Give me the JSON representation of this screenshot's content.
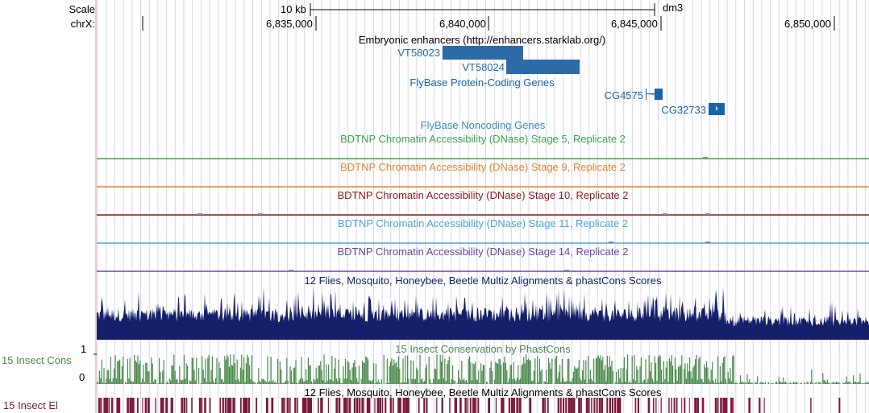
{
  "ruler": {
    "scale_label": "Scale",
    "scale_bar_label": "10 kb",
    "assembly": "dm3",
    "chrom_label": "chrX:",
    "positions": [
      "6,835,000",
      "6,840,000",
      "6,845,000",
      "6,850,000"
    ]
  },
  "tracks": {
    "enhancers": {
      "title": "Embryonic enhancers (http://enhancers.starklab.org/)",
      "features": [
        "VT58023",
        "VT58024"
      ],
      "color": "#2c6aa8"
    },
    "genes": {
      "title": "FlyBase Protein-Coding Genes",
      "features": [
        "CG4575",
        "CG32733"
      ],
      "color": "#1a63a8"
    },
    "noncoding": {
      "title": "FlyBase Noncoding Genes",
      "color": "#3a8cc4"
    },
    "dnase": [
      {
        "title": "BDTNP Chromatin Accessibility (DNase) Stage 5, Replicate 2",
        "color": "#3aa64a"
      },
      {
        "title": "BDTNP Chromatin Accessibility (DNase) Stage 9, Replicate 2",
        "color": "#e8832a"
      },
      {
        "title": "BDTNP Chromatin Accessibility (DNase) Stage 10, Replicate 2",
        "color": "#8c1a1a"
      },
      {
        "title": "BDTNP Chromatin Accessibility (DNase) Stage 11, Replicate 2",
        "color": "#4aa6d8"
      },
      {
        "title": "BDTNP Chromatin Accessibility (DNase) Stage 14, Replicate 2",
        "color": "#6a46a6"
      }
    ],
    "multiz": {
      "title": "12 Flies, Mosquito, Honeybee, Beetle Multiz Alignments & phastCons Scores",
      "color": "#14206a"
    },
    "phastcons": {
      "side_label": "15 Insect Cons",
      "title": "15 Insect Conservation by PhastCons",
      "scale_max": "1",
      "scale_min": "0",
      "color": "#4a8a4a"
    },
    "elements": {
      "side_label": "15 Insect El",
      "title": "12 Flies, Mosquito, Honeybee, Beetle Multiz Alignments & phastCons Scores",
      "color": "#7a1a3a"
    }
  }
}
